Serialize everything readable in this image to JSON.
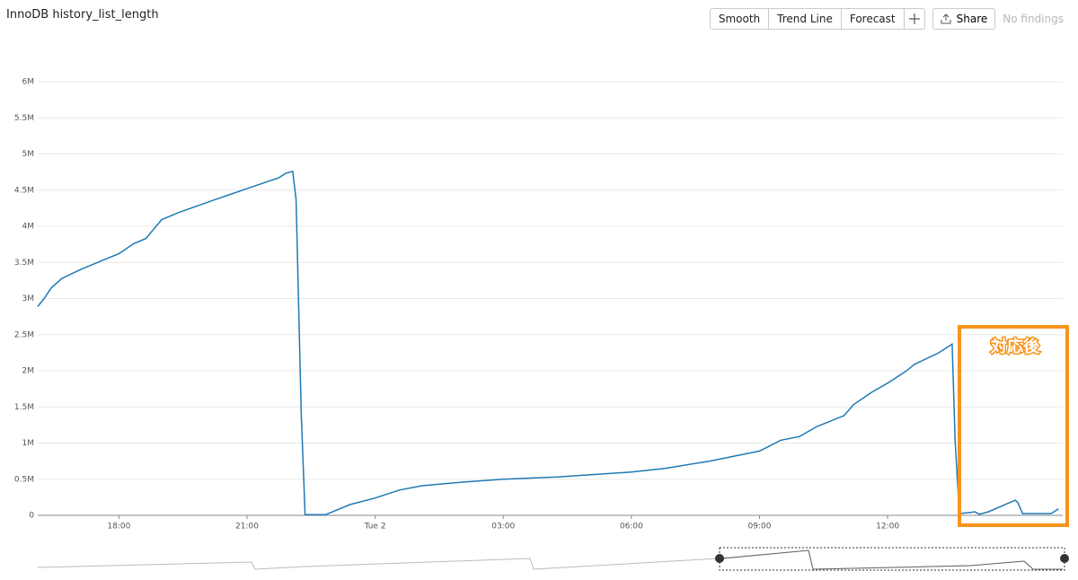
{
  "toolbar": {
    "buttons": [
      "Smooth",
      "Trend Line",
      "Forecast"
    ],
    "share": "Share",
    "findings": "No findings"
  },
  "chart_data": {
    "type": "line",
    "title": "InnoDB history_list_length",
    "annotation": "対応後",
    "x": [
      16.1,
      16.25,
      16.42,
      16.67,
      17.1,
      17.5,
      18.0,
      18.15,
      18.35,
      18.63,
      19.0,
      19.4,
      20.26,
      21.0,
      21.74,
      21.9,
      22.07,
      22.15,
      22.27,
      22.36,
      22.84,
      23.42,
      24.0,
      24.57,
      25.1,
      26.04,
      27.0,
      28.26,
      30.0,
      30.78,
      31.83,
      33.0,
      33.5,
      33.93,
      34.35,
      34.98,
      35.2,
      35.62,
      36.0,
      36.42,
      36.63,
      37.2,
      37.51,
      37.58,
      37.68,
      37.94,
      38.04,
      38.15,
      38.36,
      38.99,
      39.05,
      39.16,
      39.83,
      40.0
    ],
    "series": [
      {
        "name": "history_list_length",
        "color": "#1f7ab5",
        "values": [
          2890000,
          3000000,
          3150000,
          3280000,
          3400000,
          3500000,
          3620000,
          3680000,
          3760000,
          3830000,
          4090000,
          4190000,
          4370000,
          4520000,
          4670000,
          4730000,
          4760000,
          4370000,
          1420000,
          10000,
          10000,
          150000,
          240000,
          350000,
          410000,
          460000,
          500000,
          530000,
          600000,
          650000,
          750000,
          890000,
          1040000,
          1090000,
          1230000,
          1380000,
          1530000,
          1700000,
          1830000,
          1990000,
          2090000,
          2250000,
          2370000,
          1040000,
          25000,
          40000,
          50000,
          15000,
          50000,
          210000,
          175000,
          25000,
          25000,
          90000
        ]
      }
    ],
    "xlim": [
      16.1,
      40.1
    ],
    "xticks": [
      {
        "value": 18,
        "label": "18:00"
      },
      {
        "value": 21,
        "label": "21:00"
      },
      {
        "value": 24,
        "label": "Tue 2"
      },
      {
        "value": 27,
        "label": "03:00"
      },
      {
        "value": 30,
        "label": "06:00"
      },
      {
        "value": 33,
        "label": "09:00"
      },
      {
        "value": 36,
        "label": "12:00"
      }
    ],
    "ylim": [
      0,
      6000000
    ],
    "yticks": [
      {
        "value": 0,
        "label": "0"
      },
      {
        "value": 500000,
        "label": "0.5M"
      },
      {
        "value": 1000000,
        "label": "1M"
      },
      {
        "value": 1500000,
        "label": "1.5M"
      },
      {
        "value": 2000000,
        "label": "2M"
      },
      {
        "value": 2500000,
        "label": "2.5M"
      },
      {
        "value": 3000000,
        "label": "3M"
      },
      {
        "value": 3500000,
        "label": "3.5M"
      },
      {
        "value": 4000000,
        "label": "4M"
      },
      {
        "value": 4500000,
        "label": "4.5M"
      },
      {
        "value": 5000000,
        "label": "5M"
      },
      {
        "value": 5500000,
        "label": "5.5M"
      },
      {
        "value": 6000000,
        "label": "6M"
      }
    ],
    "grid": true
  }
}
